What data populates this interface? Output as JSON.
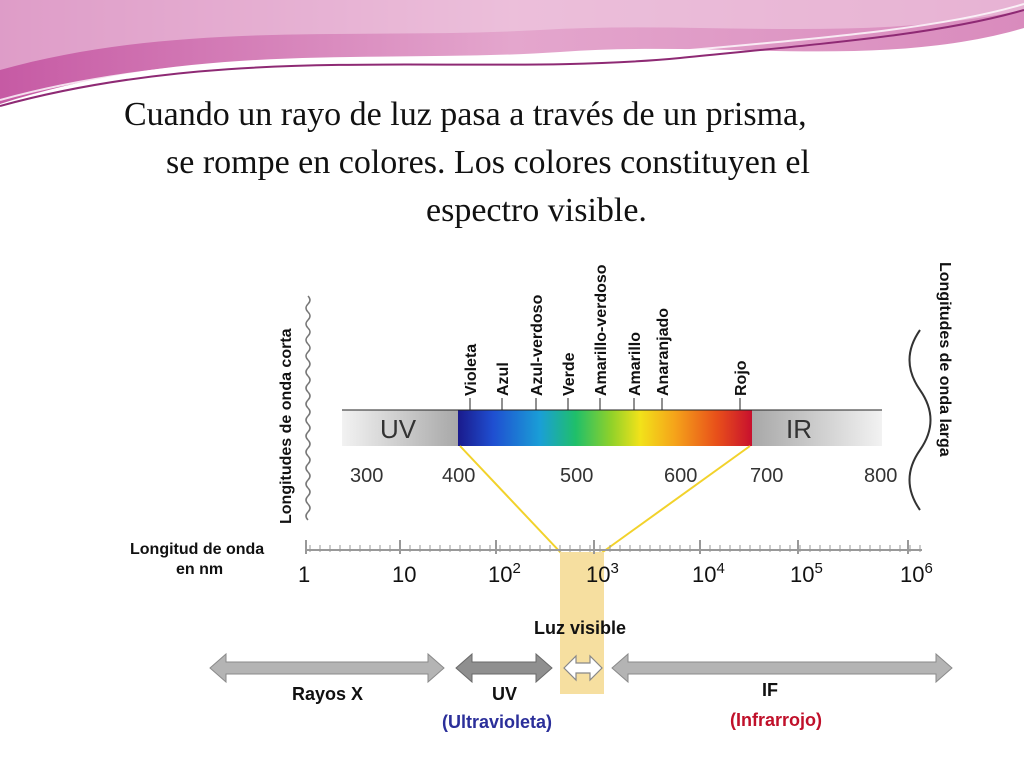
{
  "title": {
    "lines": [
      "Cuando un rayo de luz pasa a través de un prisma,",
      "se rompe en colores. Los colores constituyen el",
      "espectro visible."
    ]
  },
  "colors": {
    "banner_pink": "#d98bbd",
    "banner_light": "#f3d3e6",
    "banner_line": "#8e2a74",
    "spectrum": [
      "#1a1a8c",
      "#1f4fd1",
      "#1a9fd6",
      "#1fbf6a",
      "#8fd12a",
      "#f2e21a",
      "#f5a21a",
      "#e8501a",
      "#c8102e"
    ],
    "yellow_line": "#f2d22b",
    "yellow_box": "#f6dfa0",
    "arrow_gray": "#b4b4b4",
    "uv_blue": "#2b2f9a",
    "if_red": "#c0102a"
  },
  "diagram": {
    "short_waves_label": "Longitudes de onda corta",
    "long_waves_label": "Longitudes de onda larga",
    "color_names": [
      "Violeta",
      "Azul",
      "Azul-verdoso",
      "Verde",
      "Amarillo-verdoso",
      "Amarillo",
      "Anaranjado",
      "Rojo"
    ],
    "uv_label": "UV",
    "ir_label": "IR",
    "visible_ticks": [
      "300",
      "400",
      "500",
      "600",
      "700",
      "800"
    ],
    "wavelength_label_line1": "Longitud de onda",
    "wavelength_label_line2": "en nm",
    "log_scale": [
      {
        "base": "1",
        "exp": ""
      },
      {
        "base": "10",
        "exp": ""
      },
      {
        "base": "10",
        "exp": "2"
      },
      {
        "base": "10",
        "exp": "3"
      },
      {
        "base": "10",
        "exp": "4"
      },
      {
        "base": "10",
        "exp": "5"
      },
      {
        "base": "10",
        "exp": "6"
      }
    ],
    "visible_light_label": "Luz visible",
    "bottom": {
      "xray_label": "Rayos X",
      "uv_label": "UV",
      "uv_sub": "(Ultravioleta)",
      "if_label": "IF",
      "if_sub": "(Infrarrojo)"
    }
  }
}
